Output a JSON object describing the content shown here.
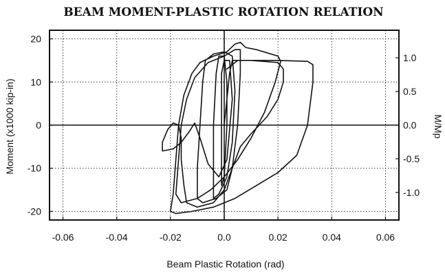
{
  "chart_data": {
    "type": "line",
    "title": "BEAM MOMENT-PLASTIC ROTATION RELATION",
    "xlabel": "Beam Plastic Rotation (rad)",
    "ylabel": "Moment (x1000 kip-in)",
    "y2label": "M/Mp",
    "xlim": [
      -0.065,
      0.065
    ],
    "ylim": [
      -22,
      22
    ],
    "y2_scale": 15.6,
    "xticks": [
      "-0.06",
      "-0.04",
      "-0.02",
      "0.0",
      "0.02",
      "0.04",
      "0.06"
    ],
    "yticks": [
      "-20",
      "-10",
      "0",
      "10",
      "20"
    ],
    "y2ticks": [
      "-1.0",
      "-0.5",
      "0.0",
      "0.5",
      "1.0"
    ],
    "grid": true,
    "series": [
      {
        "values": [
          [
            0.0,
            0.0
          ],
          [
            0.001,
            6.0
          ],
          [
            0.002,
            12.0
          ],
          [
            0.003,
            15.0
          ],
          [
            0.02,
            15.0
          ],
          [
            0.031,
            14.8
          ],
          [
            0.033,
            14.0
          ],
          [
            0.033,
            10.0
          ],
          [
            0.031,
            0.0
          ],
          [
            0.027,
            -7.0
          ],
          [
            0.02,
            -11.0
          ],
          [
            0.012,
            -14.0
          ],
          [
            0.004,
            -17.0
          ],
          [
            -0.004,
            -19.0
          ],
          [
            -0.012,
            -20.0
          ],
          [
            -0.018,
            -20.5
          ],
          [
            -0.02,
            -20.0
          ],
          [
            -0.019,
            -16.0
          ],
          [
            -0.018,
            -8.0
          ],
          [
            -0.017,
            0.0
          ],
          [
            -0.015,
            7.0
          ],
          [
            -0.012,
            12.0
          ],
          [
            -0.009,
            14.5
          ],
          [
            -0.004,
            16.0
          ],
          [
            0.001,
            17.0
          ],
          [
            0.004,
            18.8
          ],
          [
            0.006,
            19.2
          ],
          [
            0.008,
            18.0
          ],
          [
            0.012,
            17.5
          ],
          [
            0.02,
            16.0
          ],
          [
            0.021,
            14.8
          ],
          [
            0.019,
            10.0
          ],
          [
            0.015,
            3.0
          ],
          [
            0.01,
            -3.0
          ],
          [
            0.005,
            -8.0
          ],
          [
            0.0,
            -12.0
          ],
          [
            -0.005,
            -15.0
          ],
          [
            -0.01,
            -17.0
          ],
          [
            -0.016,
            -18.0
          ],
          [
            -0.018,
            -16.0
          ],
          [
            -0.017,
            -8.0
          ],
          [
            -0.016,
            0.0
          ],
          [
            -0.014,
            6.0
          ],
          [
            -0.011,
            11.0
          ],
          [
            -0.006,
            14.5
          ],
          [
            0.0,
            16.0
          ],
          [
            0.004,
            17.5
          ],
          [
            0.006,
            17.5
          ],
          [
            0.006,
            12.0
          ],
          [
            0.005,
            0.0
          ],
          [
            0.003,
            -10.0
          ],
          [
            0.001,
            -15.0
          ],
          [
            -0.003,
            -17.0
          ],
          [
            -0.008,
            -18.0
          ],
          [
            -0.01,
            -17.0
          ],
          [
            -0.01,
            -10.0
          ],
          [
            -0.009,
            0.0
          ],
          [
            -0.008,
            10.0
          ],
          [
            -0.007,
            15.0
          ],
          [
            -0.004,
            16.5
          ],
          [
            0.0,
            17.0
          ],
          [
            0.003,
            16.0
          ],
          [
            0.004,
            8.0
          ],
          [
            0.003,
            -4.0
          ],
          [
            0.001,
            -12.0
          ],
          [
            -0.002,
            -16.0
          ],
          [
            -0.004,
            -17.0
          ],
          [
            -0.004,
            -12.0
          ],
          [
            -0.004,
            0.0
          ],
          [
            -0.003,
            12.0
          ],
          [
            -0.002,
            16.0
          ],
          [
            0.0,
            16.0
          ],
          [
            0.001,
            10.0
          ],
          [
            0.001,
            0.0
          ],
          [
            0.0,
            -12.0
          ],
          [
            -0.001,
            -14.0
          ],
          [
            -0.001,
            0.0
          ],
          [
            -0.001,
            12.0
          ],
          [
            0.0,
            15.0
          ],
          [
            0.002,
            15.0
          ],
          [
            0.003,
            6.0
          ],
          [
            0.001,
            -8.0
          ],
          [
            -0.002,
            -12.0
          ],
          [
            -0.006,
            -9.0
          ],
          [
            -0.009,
            -3.0
          ],
          [
            -0.011,
            0.5
          ],
          [
            -0.013,
            -1.5
          ],
          [
            -0.016,
            -4.0
          ],
          [
            -0.019,
            -5.5
          ],
          [
            -0.023,
            -6.0
          ],
          [
            -0.023,
            -4.0
          ],
          [
            -0.021,
            -1.0
          ],
          [
            -0.019,
            0.5
          ],
          [
            -0.017,
            0.0
          ],
          [
            -0.016,
            -3.0
          ],
          [
            -0.016,
            -8.0
          ],
          [
            -0.015,
            -14.0
          ],
          [
            -0.014,
            -18.0
          ],
          [
            -0.01,
            -19.0
          ],
          [
            -0.004,
            -18.0
          ],
          [
            0.0,
            -15.0
          ],
          [
            0.003,
            -10.0
          ],
          [
            0.006,
            -5.0
          ],
          [
            0.01,
            -2.0
          ],
          [
            0.016,
            2.0
          ],
          [
            0.02,
            6.0
          ],
          [
            0.022,
            10.0
          ],
          [
            0.022,
            13.0
          ],
          [
            0.02,
            14.5
          ],
          [
            0.01,
            15.0
          ],
          [
            0.005,
            15.0
          ],
          [
            0.001,
            13.0
          ]
        ]
      }
    ]
  }
}
